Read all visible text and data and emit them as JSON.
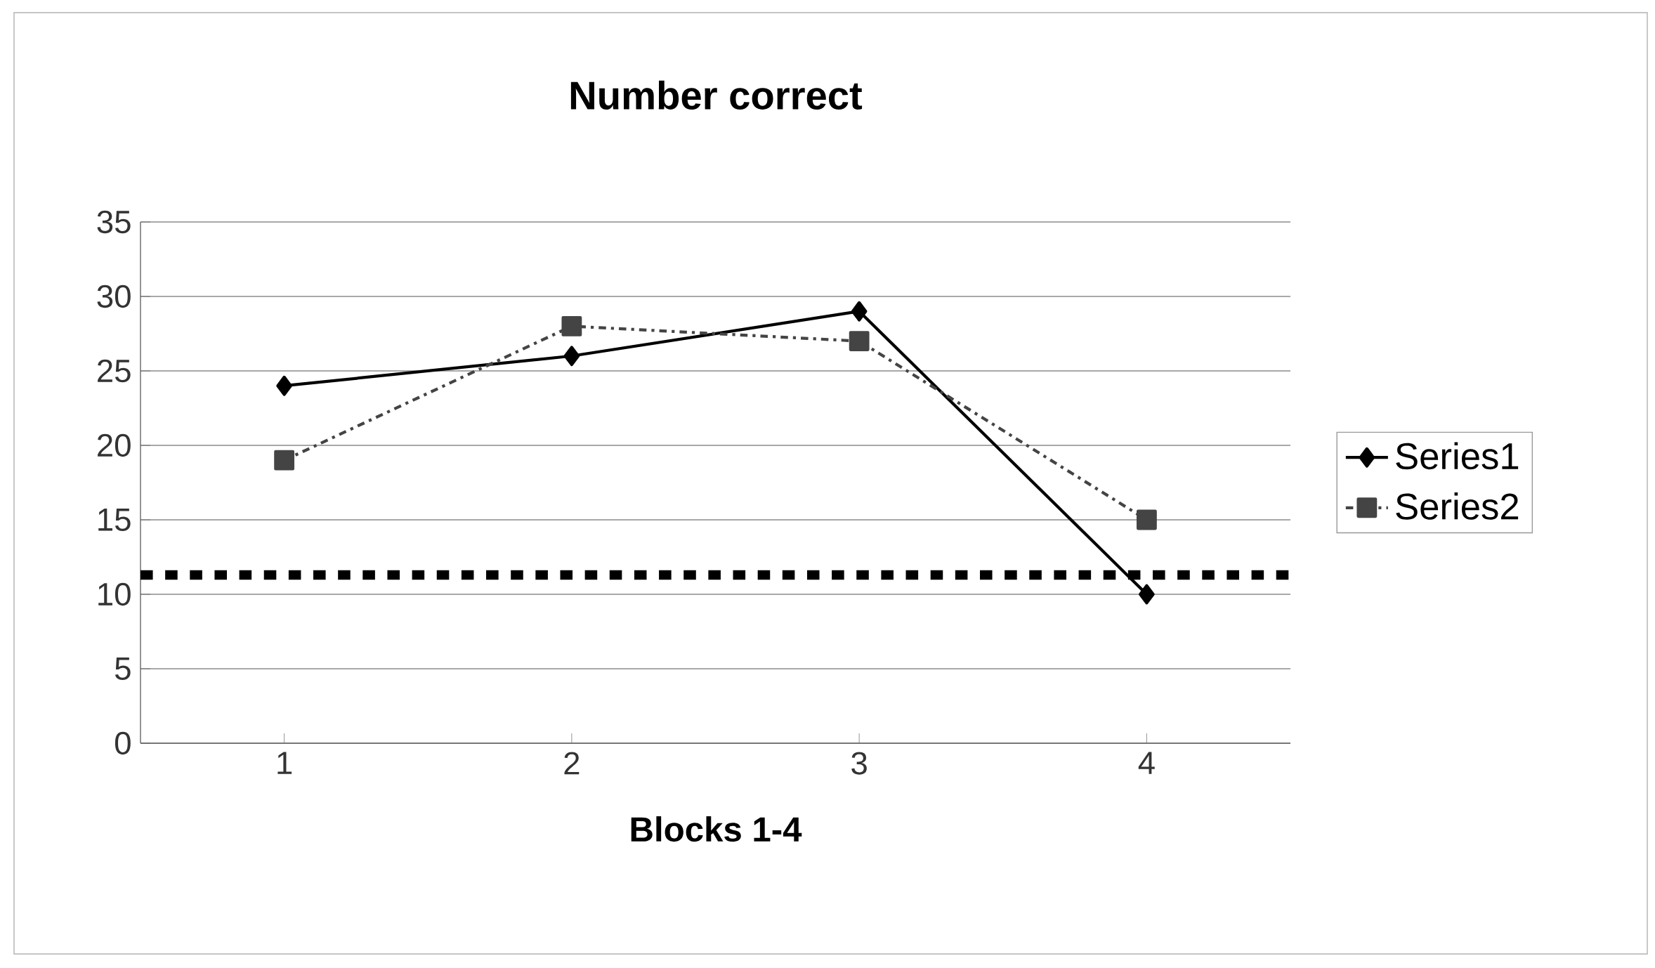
{
  "chart_data": {
    "type": "line",
    "title": "Number correct",
    "xlabel": "Blocks 1-4",
    "categories": [
      "1",
      "2",
      "3",
      "4"
    ],
    "series": [
      {
        "name": "Series1",
        "color": "#000000",
        "values": [
          24,
          26,
          29,
          10
        ],
        "marker": "diamond",
        "line_style": "solid"
      },
      {
        "name": "Series2",
        "color": "#444444",
        "values": [
          19,
          28,
          27,
          15
        ],
        "marker": "square",
        "line_style": "dashed"
      }
    ],
    "ylim": [
      0,
      35
    ],
    "yticks": [
      0,
      5,
      10,
      15,
      20,
      25,
      30,
      35
    ],
    "grid": "y",
    "legend": "right",
    "ref_lines": [
      {
        "axis": "y",
        "value": 11.3,
        "color": "#000000",
        "line_style": "dotted"
      }
    ]
  }
}
